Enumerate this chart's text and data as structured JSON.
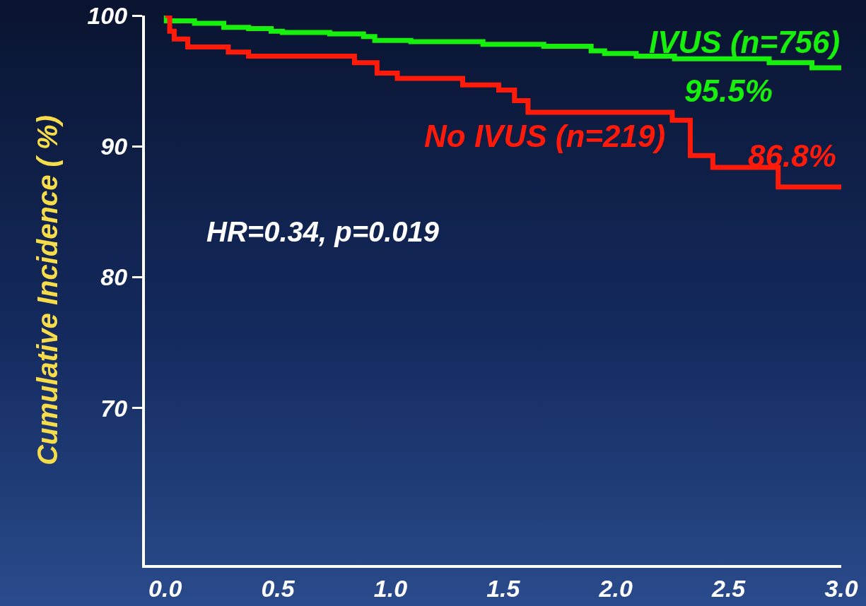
{
  "chart_data": {
    "type": "step",
    "ylabel": "Cumulative Incidence ( %)",
    "xlim": [
      -0.09,
      3.0
    ],
    "xticks": [
      {
        "value": 0,
        "label": "0.0"
      },
      {
        "value": 0.5,
        "label": "0.5"
      },
      {
        "value": 1,
        "label": "1.0"
      },
      {
        "value": 1.5,
        "label": "1.5"
      },
      {
        "value": 2,
        "label": "2.0"
      },
      {
        "value": 2.5,
        "label": "2.5"
      },
      {
        "value": 3,
        "label": "3.0"
      }
    ],
    "ylim": [
      58,
      100
    ],
    "yticks": [
      70,
      80,
      90,
      100
    ],
    "grid": false,
    "legend": false,
    "marker": "none",
    "line_style": "solid",
    "x": [
      0,
      0.005,
      0.13,
      0.26,
      0.37,
      0.47,
      0.52,
      0.73,
      0.88,
      0.93,
      1.09,
      1.41,
      1.68,
      1.89,
      1.95,
      2.09,
      2.26,
      2.68,
      2.87,
      3.0
    ],
    "series": [
      {
        "name": "IVUS (n=756)",
        "color": "#16f00c",
        "values": [
          100,
          99.6,
          99.4,
          99.1,
          99.0,
          98.8,
          98.7,
          98.6,
          98.4,
          98.1,
          98.0,
          97.8,
          97.65,
          97.3,
          97.1,
          96.9,
          96.7,
          96.4,
          96.0,
          96.0
        ]
      },
      {
        "name": "No IVUS (n=219)",
        "color": "#ff1a0a",
        "x": [
          0,
          0.02,
          0.04,
          0.1,
          0.28,
          0.37,
          0.84,
          0.94,
          1.03,
          1.32,
          1.48,
          1.55,
          1.61,
          2.25,
          2.33,
          2.43,
          2.72,
          3.0
        ],
        "values": [
          100,
          98.8,
          98.2,
          97.6,
          97.2,
          96.9,
          96.4,
          95.6,
          95.2,
          94.7,
          94.3,
          93.5,
          92.6,
          92.0,
          89.3,
          88.4,
          86.9,
          86.9
        ]
      }
    ],
    "annotations": [
      {
        "text": "95.5%",
        "x": 3.0,
        "y": 96.0
      },
      {
        "text": "86.8%",
        "x": 3.0,
        "y": 86.9
      },
      "HR=0.34, p=0.019"
    ]
  }
}
